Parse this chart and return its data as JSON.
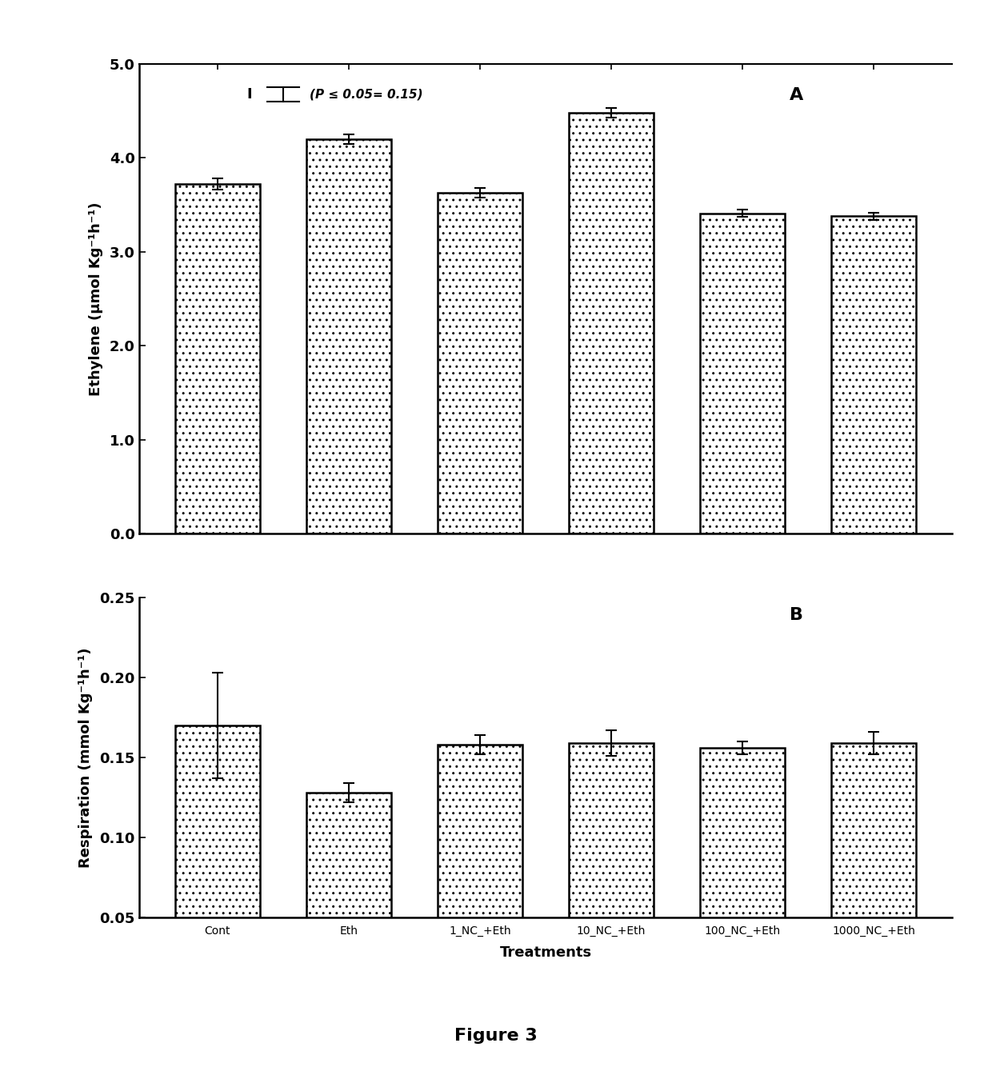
{
  "categories": [
    "Cont",
    "Eth",
    "1_NC_+Eth",
    "10_NC_+Eth",
    "100_NC_+Eth",
    "1000_NC_+Eth"
  ],
  "panel_A": {
    "values": [
      3.72,
      4.2,
      3.63,
      4.48,
      3.41,
      3.38
    ],
    "errors": [
      0.06,
      0.05,
      0.05,
      0.05,
      0.04,
      0.04
    ],
    "ylabel": "Ethylene (μmol Kg⁻¹h⁻¹)",
    "ylim": [
      0.0,
      5.0
    ],
    "yticks": [
      0.0,
      1.0,
      2.0,
      3.0,
      4.0,
      5.0
    ],
    "yticklabels": [
      "0.0",
      "1.0",
      "2.0",
      "3.0",
      "4.0",
      "5.0"
    ],
    "panel_label": "A",
    "lsd_text": "(P ≤ 0.05= 0.15)",
    "lsd_value": 0.15
  },
  "panel_B": {
    "values": [
      0.17,
      0.128,
      0.158,
      0.159,
      0.156,
      0.159
    ],
    "errors": [
      0.033,
      0.006,
      0.006,
      0.008,
      0.004,
      0.007
    ],
    "ylabel": "Respiration (mmol Kg⁻¹h⁻¹)",
    "ylim": [
      0.05,
      0.25
    ],
    "yticks": [
      0.05,
      0.1,
      0.15,
      0.2,
      0.25
    ],
    "yticklabels": [
      "0.05",
      "0.10",
      "0.15",
      "0.20",
      "0.25"
    ],
    "panel_label": "B"
  },
  "xlabel": "Treatments",
  "figure_label": "Figure 3",
  "bar_edgecolor": "#000000",
  "bar_width": 0.65,
  "hatch": "..",
  "background_color": "#ffffff",
  "tick_labels": [
    "Cont",
    "Eth",
    "1_NC_+Eth",
    "10_NC_+Eth",
    "100_NC_+Eth",
    "1000_NC_+Eth"
  ]
}
